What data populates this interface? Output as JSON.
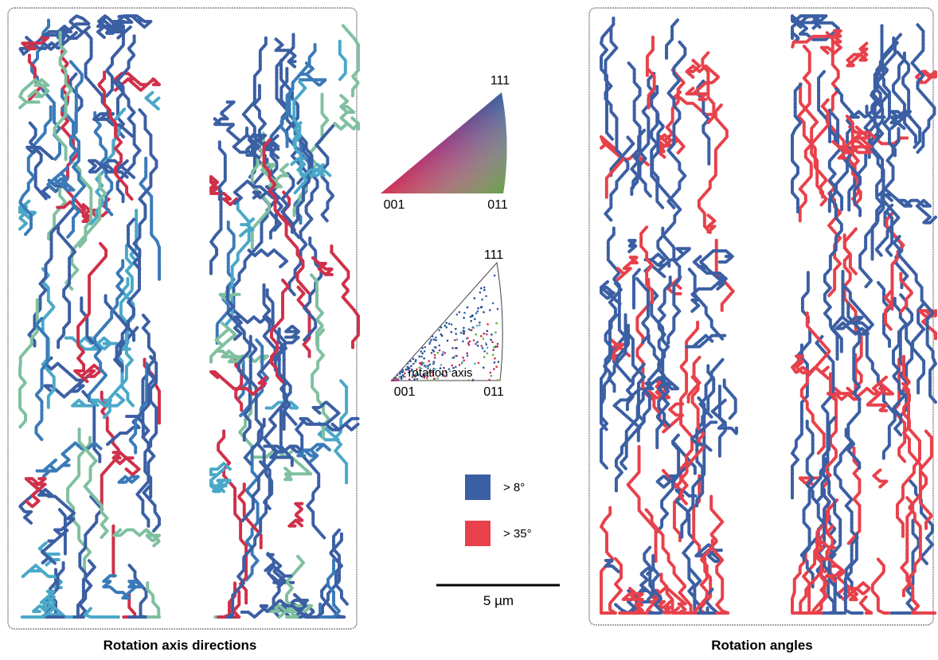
{
  "panels": [
    {
      "title": "Rotation axis directions"
    },
    {
      "title": "Rotation angles"
    }
  ],
  "key_triangles": [
    {
      "top": "111",
      "left": "001",
      "right": "011"
    },
    {
      "top": "111",
      "left": "001",
      "right": "011",
      "caption": "rotation axis"
    }
  ],
  "legend": [
    {
      "label": "> 8°",
      "color": "#3b5fa3"
    },
    {
      "label": "> 35°",
      "color": "#e8414b"
    }
  ],
  "scale_bar": {
    "label": "5 µm"
  }
}
